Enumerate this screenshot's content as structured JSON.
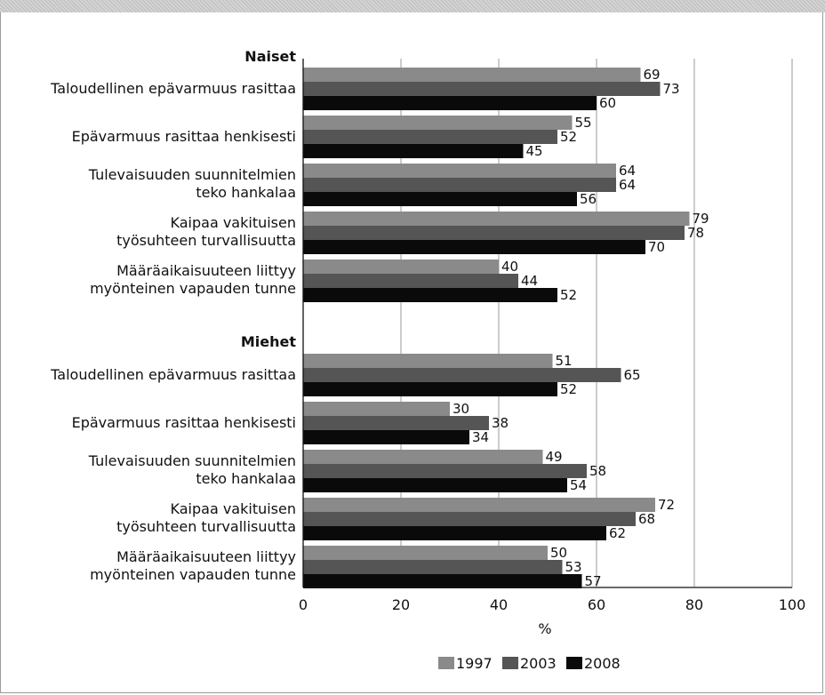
{
  "chart_data": {
    "type": "bar",
    "orientation": "horizontal",
    "xlabel": "%",
    "xlim": [
      0,
      100
    ],
    "x_ticks": [
      "0",
      "20",
      "40",
      "60",
      "80",
      "100"
    ],
    "grid": "vertical",
    "legend_position": "bottom",
    "series": [
      {
        "name": "1997",
        "color": "#8a8a8a"
      },
      {
        "name": "2003",
        "color": "#555555"
      },
      {
        "name": "2008",
        "color": "#0a0a0a"
      }
    ],
    "groups": [
      {
        "title": "Naiset",
        "categories": [
          {
            "label": [
              "Taloudellinen epävarmuus rasittaa"
            ],
            "values": [
              69,
              73,
              60
            ]
          },
          {
            "label": [
              "Epävarmuus rasittaa henkisesti"
            ],
            "values": [
              55,
              52,
              45
            ]
          },
          {
            "label": [
              "Tulevaisuuden suunnitelmien",
              "teko hankalaa"
            ],
            "values": [
              64,
              64,
              56
            ]
          },
          {
            "label": [
              "Kaipaa vakituisen",
              "työsuhteen turvallisuutta"
            ],
            "values": [
              79,
              78,
              70
            ]
          },
          {
            "label": [
              "Määräaikaisuuteen liittyy",
              "myönteinen vapauden tunne"
            ],
            "values": [
              40,
              44,
              52
            ]
          }
        ]
      },
      {
        "title": "Miehet",
        "categories": [
          {
            "label": [
              "Taloudellinen epävarmuus rasittaa"
            ],
            "values": [
              51,
              65,
              52
            ]
          },
          {
            "label": [
              "Epävarmuus rasittaa henkisesti"
            ],
            "values": [
              30,
              38,
              34
            ]
          },
          {
            "label": [
              "Tulevaisuuden suunnitelmien",
              "teko hankalaa"
            ],
            "values": [
              49,
              58,
              54
            ]
          },
          {
            "label": [
              "Kaipaa vakituisen",
              "työsuhteen turvallisuutta"
            ],
            "values": [
              72,
              68,
              62
            ]
          },
          {
            "label": [
              "Määräaikaisuuteen liittyy",
              "myönteinen vapauden tunne"
            ],
            "values": [
              50,
              53,
              57
            ]
          }
        ]
      }
    ]
  }
}
